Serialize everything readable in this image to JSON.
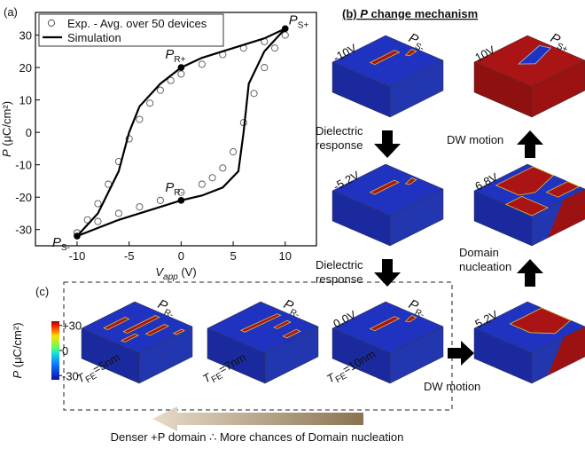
{
  "chart_data": {
    "type": "line",
    "panel_label": "(a)",
    "x_label": {
      "symbol": "V",
      "sub": "app",
      "unit": " (V)"
    },
    "y_label": {
      "symbol": "P",
      "unit": " (μC/cm²)"
    },
    "xlim": [
      -14,
      13
    ],
    "ylim": [
      -35,
      37
    ],
    "xticks": [
      -10,
      -5,
      0,
      5,
      10
    ],
    "yticks": [
      -30,
      -20,
      -10,
      0,
      10,
      20,
      30
    ],
    "legend": "upper left",
    "series": [
      {
        "name": "Exp. - Avg. over 50 devices",
        "marker": "circle",
        "color": "#555555",
        "x": [
          -10,
          -9,
          -8,
          -7,
          -6,
          -5,
          -4,
          -3,
          -2,
          -1,
          0,
          2,
          4,
          6,
          8,
          10,
          9,
          8,
          7,
          6,
          5,
          4,
          3,
          2,
          0,
          -2,
          -4,
          -6,
          -8,
          -10
        ],
        "values": [
          -31,
          -27,
          -22,
          -16,
          -9,
          -2,
          4,
          9,
          13,
          16,
          18,
          21,
          24,
          26,
          28,
          30,
          26,
          20,
          12,
          3,
          -6,
          -11,
          -14,
          -16,
          -18.5,
          -21,
          -23,
          -25,
          -27.5,
          -31
        ]
      },
      {
        "name": "Simulation",
        "marker": "none",
        "color": "#000000",
        "x": [
          -10,
          -8,
          -6,
          -5,
          -4,
          -2,
          0,
          2,
          5,
          8,
          10,
          8,
          6.5,
          6,
          5.5,
          4,
          2,
          0,
          -3,
          -6,
          -8,
          -10
        ],
        "values": [
          -32,
          -25,
          -12,
          0,
          8,
          15,
          20,
          23,
          26,
          29,
          32,
          25,
          15,
          0,
          -12,
          -17,
          -19.5,
          -21,
          -24,
          -27,
          -29.5,
          -32
        ]
      }
    ],
    "annotations": [
      {
        "symbol": "P",
        "sub": "R+",
        "x": 0,
        "y": 20
      },
      {
        "symbol": "P",
        "sub": "S+",
        "x": 10,
        "y": 32
      },
      {
        "symbol": "P",
        "sub": "R-",
        "x": 0,
        "y": -21
      },
      {
        "symbol": "P",
        "sub": "S-",
        "x": -10,
        "y": -32
      }
    ]
  },
  "mechanism": {
    "label": "(b)",
    "title_symbol": "P",
    "title_rest": " change mechanism",
    "cubes": [
      {
        "voltage": "-10V",
        "symbol": "P",
        "sub": "S-"
      },
      {
        "voltage": "10V",
        "symbol": "P",
        "sub": "S+"
      },
      {
        "voltage": "-5.2V"
      },
      {
        "voltage": "6.8V"
      },
      {
        "voltage": "0.0V",
        "symbol": "P",
        "sub": "R-"
      },
      {
        "voltage": "5.2V"
      },
      {
        "symbol": "P",
        "sub": "R-"
      },
      {
        "symbol": "P",
        "sub": "R-"
      }
    ],
    "steps": [
      {
        "lines": [
          "Dielectric",
          "response"
        ]
      },
      {
        "lines": [
          "DW motion"
        ]
      },
      {
        "lines": [
          "Dielectric",
          "response"
        ]
      },
      {
        "lines": [
          "Domain",
          "nucleation"
        ]
      },
      {
        "lines": [
          "DW motion"
        ]
      }
    ]
  },
  "thickness": {
    "label": "(c)",
    "colorbar": {
      "label_symbol": "P",
      "label_unit": " (μC/cm²)",
      "clim": [
        -35,
        35
      ],
      "ticks": [
        {
          "value": 30,
          "label": "+30"
        },
        0,
        -30
      ]
    },
    "items": [
      {
        "symbol": "T",
        "sub": "FE",
        "value": "=5nm"
      },
      {
        "symbol": "T",
        "sub": "FE",
        "value": "=7nm"
      },
      {
        "symbol": "T",
        "sub": "FE",
        "value": "=10nm"
      }
    ],
    "caption": "Denser +P domain ∴ More chances of Domain nucleation"
  }
}
